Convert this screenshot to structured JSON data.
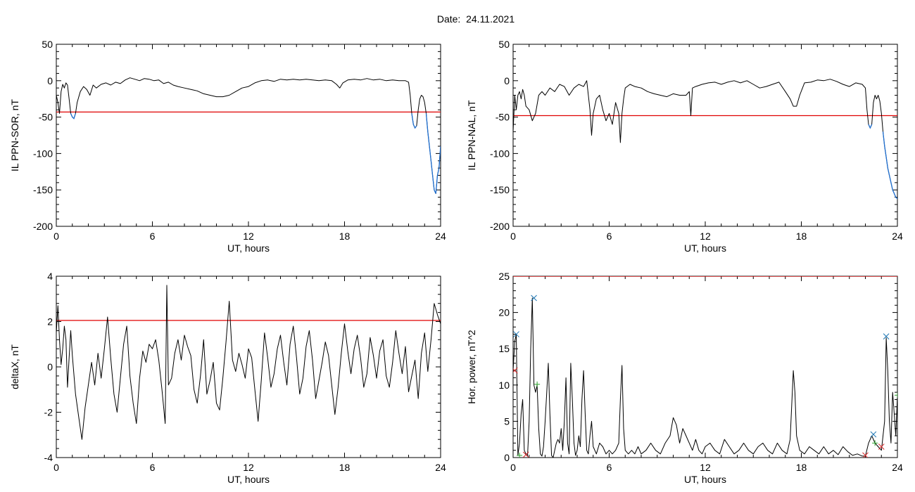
{
  "title": "Date:  24.11.2021",
  "chart_data": [
    {
      "id": "sor",
      "type": "line",
      "title": "",
      "xlabel": "UT, hours",
      "ylabel": "IL PPN-SOR, nT",
      "xlim": [
        0,
        24
      ],
      "ylim": [
        -200,
        50
      ],
      "xticks": [
        0,
        6,
        12,
        18,
        24
      ],
      "yticks": [
        50,
        0,
        -50,
        -100,
        -150,
        -200
      ],
      "grid": false,
      "threshold": -43,
      "series": [
        {
          "color": "#000000",
          "x": [
            0,
            0.1,
            0.2,
            0.3,
            0.4,
            0.5,
            0.6,
            0.7,
            0.8,
            0.9,
            1.0,
            1.1,
            1.2,
            1.3,
            1.5,
            1.7,
            1.9,
            2.1,
            2.3,
            2.5,
            2.8,
            3.1,
            3.4,
            3.7,
            4.0,
            4.3,
            4.6,
            4.9,
            5.2,
            5.5,
            5.8,
            6.1,
            6.4,
            6.7,
            7.0,
            7.3,
            7.6,
            8.0,
            8.4,
            8.8,
            9.2,
            9.6,
            10.0,
            10.4,
            10.8,
            11.2,
            11.6,
            12.0,
            12.4,
            12.8,
            13.2,
            13.6,
            14.0,
            14.4,
            14.8,
            15.2,
            15.6,
            16.0,
            16.4,
            16.8,
            17.2,
            17.5,
            17.7,
            17.9,
            18.2,
            18.6,
            19.0,
            19.4,
            19.8,
            20.2,
            20.6,
            21.0,
            21.4,
            21.8,
            22.0,
            22.1,
            22.2,
            22.3,
            22.4,
            22.5,
            22.6,
            22.7,
            22.8,
            22.9,
            23.0,
            23.1,
            23.2,
            23.3,
            23.4,
            23.5,
            23.6,
            23.7,
            23.8,
            23.9,
            24.0
          ],
          "y": [
            -20,
            -30,
            -45,
            -15,
            -5,
            -10,
            -3,
            -6,
            -25,
            -45,
            -50,
            -52,
            -45,
            -30,
            -15,
            -8,
            -12,
            -20,
            -6,
            -10,
            -5,
            -3,
            -6,
            -2,
            -4,
            1,
            4,
            2,
            0,
            3,
            2,
            0,
            1,
            -4,
            -2,
            -6,
            -8,
            -10,
            -12,
            -14,
            -18,
            -20,
            -22,
            -22,
            -20,
            -15,
            -10,
            -8,
            -3,
            0,
            1,
            -1,
            2,
            1,
            2,
            1,
            2,
            1,
            0,
            1,
            0,
            -5,
            -10,
            -3,
            1,
            2,
            1,
            3,
            1,
            2,
            0,
            1,
            0,
            0,
            -2,
            -20,
            -45,
            -60,
            -65,
            -62,
            -40,
            -25,
            -20,
            -22,
            -30,
            -45,
            -70,
            -90,
            -110,
            -130,
            -150,
            -155,
            -130,
            -120,
            -90
          ]
        }
      ]
    },
    {
      "id": "nal",
      "type": "line",
      "title": "",
      "xlabel": "UT, hours",
      "ylabel": "IL PPN-NAL, nT",
      "xlim": [
        0,
        24
      ],
      "ylim": [
        -200,
        50
      ],
      "xticks": [
        0,
        6,
        12,
        18,
        24
      ],
      "yticks": [
        50,
        0,
        -50,
        -100,
        -150,
        -200
      ],
      "grid": false,
      "threshold": -48,
      "series": [
        {
          "color": "#000000",
          "x": [
            0,
            0.1,
            0.2,
            0.3,
            0.4,
            0.5,
            0.6,
            0.7,
            0.8,
            1.0,
            1.2,
            1.4,
            1.6,
            1.8,
            2.0,
            2.3,
            2.6,
            2.9,
            3.2,
            3.5,
            3.8,
            4.1,
            4.4,
            4.6,
            4.7,
            4.8,
            4.9,
            5.0,
            5.2,
            5.4,
            5.6,
            5.8,
            6.0,
            6.2,
            6.4,
            6.6,
            6.7,
            6.8,
            6.9,
            7.0,
            7.3,
            7.6,
            8.0,
            8.4,
            8.8,
            9.2,
            9.6,
            10.0,
            10.4,
            10.8,
            11.0,
            11.1,
            11.2,
            11.4,
            11.8,
            12.2,
            12.6,
            13.0,
            13.4,
            13.8,
            14.2,
            14.6,
            15.0,
            15.4,
            15.8,
            16.2,
            16.6,
            17.0,
            17.3,
            17.5,
            17.7,
            17.9,
            18.2,
            18.6,
            19.0,
            19.4,
            19.8,
            20.2,
            20.6,
            21.0,
            21.4,
            21.8,
            22.0,
            22.1,
            22.2,
            22.3,
            22.4,
            22.5,
            22.6,
            22.7,
            22.8,
            22.9,
            23.0,
            23.1,
            23.2,
            23.3,
            23.4,
            23.5,
            23.6,
            23.7,
            23.8,
            23.9,
            24.0
          ],
          "y": [
            -70,
            -20,
            -40,
            -20,
            -15,
            -25,
            -12,
            -20,
            -35,
            -40,
            -55,
            -45,
            -20,
            -15,
            -20,
            -10,
            -15,
            -5,
            -8,
            -20,
            -10,
            -5,
            -8,
            0,
            -20,
            -40,
            -75,
            -45,
            -25,
            -20,
            -40,
            -55,
            -45,
            -60,
            -30,
            -45,
            -85,
            -45,
            -25,
            -10,
            -5,
            -8,
            -10,
            -15,
            -18,
            -20,
            -22,
            -18,
            -20,
            -20,
            -15,
            -48,
            -10,
            -8,
            -5,
            -3,
            -2,
            -5,
            -2,
            0,
            -3,
            0,
            -5,
            -10,
            -8,
            -5,
            -2,
            -15,
            -25,
            -35,
            -35,
            -20,
            -3,
            -2,
            1,
            0,
            2,
            -1,
            -5,
            -8,
            -3,
            -5,
            -10,
            -40,
            -60,
            -65,
            -60,
            -30,
            -20,
            -25,
            -20,
            -28,
            -45,
            -70,
            -90,
            -105,
            -120,
            -130,
            -140,
            -150,
            -155,
            -160,
            -162
          ]
        }
      ]
    },
    {
      "id": "deltax",
      "type": "line",
      "title": "",
      "xlabel": "UT, hours",
      "ylabel": "deltaX, nT",
      "xlim": [
        0,
        24
      ],
      "ylim": [
        -4,
        4
      ],
      "xticks": [
        0,
        6,
        12,
        18,
        24
      ],
      "yticks": [
        4,
        2,
        0,
        -2,
        -4
      ],
      "grid": false,
      "threshold": 2.05,
      "series": [
        {
          "color": "#000000",
          "x": [
            0,
            0.1,
            0.2,
            0.3,
            0.4,
            0.5,
            0.6,
            0.7,
            0.8,
            0.9,
            1.0,
            1.2,
            1.4,
            1.6,
            1.8,
            2.0,
            2.2,
            2.4,
            2.6,
            2.8,
            3.0,
            3.2,
            3.4,
            3.6,
            3.8,
            4.0,
            4.2,
            4.4,
            4.6,
            4.8,
            5.0,
            5.2,
            5.4,
            5.6,
            5.8,
            6.0,
            6.2,
            6.4,
            6.6,
            6.8,
            6.9,
            7.0,
            7.2,
            7.4,
            7.6,
            7.8,
            8.0,
            8.2,
            8.4,
            8.6,
            8.8,
            9.0,
            9.2,
            9.4,
            9.6,
            9.8,
            10.0,
            10.2,
            10.4,
            10.6,
            10.8,
            11.0,
            11.2,
            11.4,
            11.6,
            11.8,
            12.0,
            12.2,
            12.4,
            12.6,
            12.8,
            13.0,
            13.2,
            13.4,
            13.6,
            13.8,
            14.0,
            14.2,
            14.4,
            14.6,
            14.8,
            15.0,
            15.2,
            15.4,
            15.6,
            15.8,
            16.0,
            16.2,
            16.4,
            16.6,
            16.8,
            17.0,
            17.2,
            17.4,
            17.6,
            17.8,
            18.0,
            18.2,
            18.4,
            18.6,
            18.8,
            19.0,
            19.2,
            19.4,
            19.6,
            19.8,
            20.0,
            20.2,
            20.4,
            20.6,
            20.8,
            21.0,
            21.2,
            21.4,
            21.6,
            21.8,
            22.0,
            22.2,
            22.4,
            22.6,
            22.8,
            23.0,
            23.2,
            23.4,
            23.6,
            23.8,
            24.0
          ],
          "y": [
            1.5,
            2.7,
            1.2,
            0.1,
            0.8,
            1.8,
            1.2,
            -0.9,
            0.4,
            1.6,
            0.5,
            -1.2,
            -2.2,
            -3.2,
            -1.8,
            -0.8,
            0.2,
            -0.8,
            0.6,
            -0.5,
            0.8,
            2.2,
            0.4,
            -1.2,
            -2.0,
            -0.5,
            1.0,
            1.8,
            -0.4,
            -1.6,
            -2.5,
            -0.5,
            0.7,
            0.2,
            1.0,
            0.8,
            1.2,
            0.3,
            -1.0,
            -2.5,
            3.6,
            -0.8,
            -0.5,
            0.6,
            1.2,
            0.3,
            1.4,
            0.9,
            0.5,
            -1.0,
            -1.6,
            -0.4,
            1.2,
            -1.2,
            -0.6,
            0.2,
            -1.6,
            -1.9,
            -0.5,
            1.1,
            2.9,
            0.3,
            -0.2,
            0.6,
            0.1,
            -0.5,
            0.8,
            0.4,
            -1.0,
            -2.4,
            -0.6,
            1.5,
            0.4,
            -0.9,
            -0.3,
            0.8,
            1.4,
            0.2,
            -0.8,
            1.0,
            1.8,
            0.4,
            -1.2,
            -0.5,
            0.9,
            1.6,
            0.3,
            -1.4,
            -0.6,
            0.2,
            1.1,
            0.5,
            -0.8,
            -2.1,
            -0.9,
            0.6,
            1.9,
            0.7,
            -0.3,
            0.8,
            1.4,
            0.4,
            -0.9,
            -0.3,
            1.3,
            0.5,
            -0.5,
            0.7,
            1.2,
            -0.4,
            -0.9,
            0.2,
            1.6,
            0.6,
            -0.3,
            0.9,
            -1.1,
            -0.4,
            0.3,
            -1.4,
            0.6,
            1.5,
            -0.2,
            1.2,
            2.8,
            2.3,
            1.9
          ]
        }
      ]
    },
    {
      "id": "power",
      "type": "line",
      "title": "",
      "xlabel": "UT, hours",
      "ylabel": "Hor. power, nT^2",
      "xlim": [
        0,
        24
      ],
      "ylim": [
        0,
        25
      ],
      "xticks": [
        0,
        6,
        12,
        18,
        24
      ],
      "yticks": [
        25,
        20,
        15,
        10,
        5,
        0
      ],
      "grid": false,
      "threshold": 25,
      "series": [
        {
          "color": "#000000",
          "x": [
            0,
            0.1,
            0.2,
            0.3,
            0.4,
            0.5,
            0.6,
            0.7,
            0.8,
            0.9,
            1.0,
            1.1,
            1.2,
            1.3,
            1.4,
            1.5,
            1.6,
            1.7,
            1.8,
            1.9,
            2.0,
            2.1,
            2.2,
            2.3,
            2.4,
            2.5,
            2.6,
            2.7,
            2.8,
            2.9,
            3.0,
            3.1,
            3.2,
            3.3,
            3.4,
            3.5,
            3.6,
            3.7,
            3.8,
            3.9,
            4.0,
            4.1,
            4.2,
            4.3,
            4.4,
            4.5,
            4.6,
            4.7,
            4.8,
            4.9,
            5.0,
            5.2,
            5.4,
            5.6,
            5.8,
            6.0,
            6.2,
            6.4,
            6.6,
            6.7,
            6.8,
            6.9,
            7.0,
            7.2,
            7.4,
            7.6,
            7.8,
            8.0,
            8.3,
            8.6,
            8.9,
            9.2,
            9.5,
            9.8,
            10.0,
            10.2,
            10.4,
            10.6,
            10.8,
            11.0,
            11.2,
            11.4,
            11.6,
            11.8,
            12.0,
            12.3,
            12.6,
            12.9,
            13.2,
            13.5,
            13.8,
            14.1,
            14.4,
            14.7,
            15.0,
            15.3,
            15.6,
            15.9,
            16.2,
            16.5,
            16.8,
            17.1,
            17.3,
            17.5,
            17.6,
            17.7,
            17.9,
            18.2,
            18.5,
            18.8,
            19.1,
            19.4,
            19.7,
            20.0,
            20.3,
            20.6,
            20.9,
            21.2,
            21.5,
            21.8,
            22.0,
            22.2,
            22.4,
            22.6,
            22.8,
            23.0,
            23.2,
            23.3,
            23.4,
            23.5,
            23.6,
            23.7,
            23.8,
            23.9,
            24.0
          ],
          "y": [
            12,
            16,
            17,
            0.3,
            2,
            6,
            8,
            1,
            0.5,
            0.2,
            5,
            15,
            22,
            10,
            9,
            10,
            4,
            0.5,
            0.2,
            1.5,
            5,
            9,
            13,
            6,
            0.3,
            0,
            1,
            2,
            2.5,
            2,
            4,
            1,
            5,
            11,
            2,
            0.5,
            13,
            8,
            2,
            0.3,
            1,
            3,
            1.5,
            8,
            12,
            6,
            1,
            0.5,
            3,
            5,
            1.5,
            0.5,
            2,
            1.5,
            0.5,
            1,
            0.5,
            1,
            2,
            8,
            12.7,
            4,
            1,
            0.5,
            1,
            0.5,
            1.5,
            0.5,
            1,
            2,
            1,
            0.5,
            2,
            3,
            5.5,
            4.5,
            2,
            4,
            3,
            2,
            1,
            2.5,
            1,
            0.5,
            1.5,
            2,
            1,
            0.5,
            2.5,
            1.5,
            0.5,
            1,
            2,
            1,
            0.5,
            1.5,
            2,
            1,
            0.5,
            2,
            1,
            0.5,
            2.5,
            12,
            9,
            3,
            1,
            0.5,
            1.5,
            1,
            0.5,
            1.5,
            0.5,
            1,
            0.4,
            1.5,
            0.8,
            0.3,
            0.5,
            0.2,
            0.2,
            2,
            3,
            2,
            1.5,
            1,
            5,
            16.5,
            12,
            5,
            2,
            9,
            6,
            3,
            8.5
          ]
        },
        {
          "type": "markers",
          "x": [
            0.2,
            1.3,
            22.5,
            23.3
          ],
          "y": [
            17,
            22,
            3.2,
            16.7
          ],
          "marker": "x",
          "color": "#1f77b4"
        },
        {
          "type": "markers",
          "x": [
            0.4,
            1.5,
            22.6,
            24.0
          ],
          "y": [
            0.3,
            10.1,
            2.0,
            8.6
          ],
          "marker": "+",
          "color": "#2ca02c"
        },
        {
          "type": "markers",
          "x": [
            0.1,
            0.8,
            22.0,
            23.0
          ],
          "y": [
            12,
            0.4,
            0.3,
            1.5
          ],
          "marker": "x",
          "color": "#d62728"
        }
      ]
    }
  ],
  "colors": {
    "threshold": "#e00000",
    "highlight": "#1f6fd0",
    "line": "#000000"
  }
}
